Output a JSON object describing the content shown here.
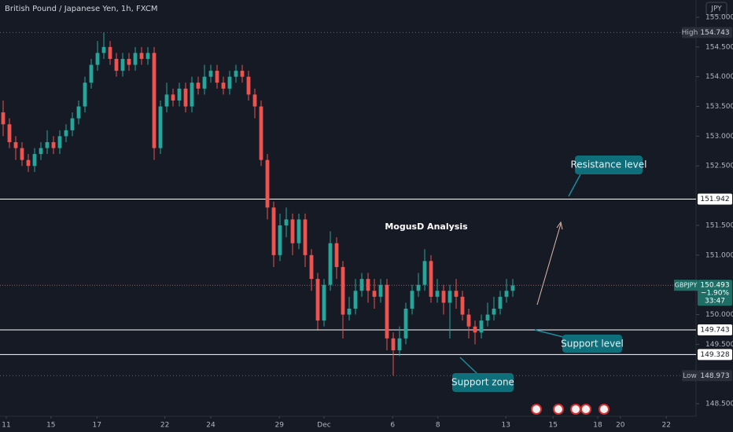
{
  "chart_data": {
    "type": "candlestick",
    "title": "British Pound / Japanese Yen, 1h, FXCM",
    "currency": "JPY",
    "watermark": "MogusD Analysis",
    "up_color": "#26a69a",
    "down_color": "#ef5350",
    "open": [
      153.4,
      153.2,
      152.9,
      152.8,
      152.6,
      152.5,
      152.7,
      152.8,
      152.9,
      152.8,
      153.0,
      153.1,
      153.3,
      153.5,
      153.9,
      154.2,
      154.4,
      154.5,
      154.3,
      154.1,
      154.3,
      154.2,
      154.4,
      154.3,
      154.4,
      152.8,
      153.5,
      153.7,
      153.6,
      153.8,
      153.5,
      153.9,
      153.8,
      154.0,
      154.1,
      153.9,
      153.8,
      154.0,
      154.1,
      154.0,
      153.7,
      153.5,
      152.6,
      151.8,
      151.0,
      151.5,
      151.6,
      151.2,
      151.6,
      151.0,
      150.6,
      149.9,
      150.5,
      151.2,
      150.8,
      150.0,
      150.1,
      150.4,
      150.6,
      150.4,
      150.3,
      150.5,
      149.6,
      149.4,
      149.6,
      150.1,
      150.4,
      150.5,
      150.9,
      150.3,
      150.4,
      150.2,
      150.4,
      150.3,
      150.0,
      149.8,
      149.7,
      149.9,
      150.0,
      150.1,
      150.3,
      150.4
    ],
    "high": [
      153.6,
      153.3,
      153.0,
      152.9,
      152.7,
      152.8,
      152.9,
      153.1,
      153.0,
      153.1,
      153.2,
      153.4,
      153.6,
      154.0,
      154.3,
      154.6,
      154.743,
      154.6,
      154.4,
      154.4,
      154.4,
      154.5,
      154.5,
      154.5,
      154.5,
      153.6,
      153.9,
      153.8,
      153.9,
      153.9,
      154.0,
      154.0,
      154.2,
      154.2,
      154.2,
      154.0,
      154.1,
      154.2,
      154.2,
      154.1,
      153.8,
      153.6,
      152.7,
      151.9,
      151.7,
      151.8,
      151.7,
      151.7,
      151.7,
      151.1,
      150.7,
      150.6,
      151.4,
      151.3,
      150.9,
      150.3,
      150.6,
      150.7,
      150.7,
      150.6,
      150.6,
      150.6,
      149.7,
      149.8,
      150.2,
      150.5,
      150.7,
      151.1,
      151.0,
      150.6,
      150.5,
      150.5,
      150.6,
      150.4,
      150.1,
      149.9,
      150.0,
      150.2,
      150.3,
      150.4,
      150.6,
      150.6
    ],
    "low": [
      153.0,
      152.8,
      152.6,
      152.5,
      152.4,
      152.4,
      152.6,
      152.7,
      152.7,
      152.7,
      152.9,
      153.0,
      153.2,
      153.4,
      153.8,
      154.1,
      154.3,
      154.2,
      154.0,
      154.0,
      154.1,
      154.1,
      154.2,
      154.2,
      152.6,
      152.7,
      153.4,
      153.5,
      153.5,
      153.4,
      153.4,
      153.7,
      153.7,
      153.9,
      153.8,
      153.7,
      153.7,
      153.9,
      153.9,
      153.6,
      153.3,
      152.5,
      151.6,
      150.8,
      150.9,
      151.3,
      151.0,
      151.1,
      150.8,
      150.4,
      149.75,
      149.8,
      150.4,
      150.6,
      149.6,
      149.9,
      150.0,
      150.3,
      150.2,
      150.1,
      150.2,
      149.4,
      148.973,
      149.3,
      149.5,
      150.0,
      150.3,
      150.4,
      150.2,
      150.2,
      150.0,
      149.6,
      150.1,
      149.9,
      149.6,
      149.5,
      149.6,
      149.8,
      149.9,
      150.0,
      150.2,
      150.3
    ],
    "close": [
      153.2,
      152.9,
      152.8,
      152.6,
      152.5,
      152.7,
      152.8,
      152.9,
      152.8,
      153.0,
      153.1,
      153.3,
      153.5,
      153.9,
      154.2,
      154.4,
      154.5,
      154.3,
      154.1,
      154.3,
      154.2,
      154.4,
      154.3,
      154.4,
      152.8,
      153.5,
      153.7,
      153.6,
      153.8,
      153.5,
      153.9,
      153.8,
      154.0,
      154.1,
      153.9,
      153.8,
      154.0,
      154.1,
      154.0,
      153.7,
      153.5,
      152.6,
      151.8,
      151.0,
      151.5,
      151.6,
      151.2,
      151.6,
      151.0,
      150.6,
      149.9,
      150.5,
      151.2,
      150.8,
      150.0,
      150.1,
      150.4,
      150.6,
      150.4,
      150.3,
      150.5,
      149.6,
      149.4,
      149.6,
      150.1,
      150.4,
      150.5,
      150.9,
      150.3,
      150.4,
      150.2,
      150.4,
      150.3,
      150.0,
      149.8,
      149.7,
      149.9,
      150.0,
      150.1,
      150.3,
      150.4,
      150.49
    ],
    "xlim": [
      0,
      110.625
    ],
    "xticks": [
      {
        "value": 1,
        "label": "11"
      },
      {
        "value": 8.1,
        "label": "15"
      },
      {
        "value": 15.4,
        "label": "17"
      },
      {
        "value": 26.2,
        "label": "22"
      },
      {
        "value": 33.5,
        "label": "24"
      },
      {
        "value": 44.4,
        "label": "29"
      },
      {
        "value": 51.5,
        "label": "Dec"
      },
      {
        "value": 62.4,
        "label": "6"
      },
      {
        "value": 69.6,
        "label": "8"
      },
      {
        "value": 80.4,
        "label": "13"
      },
      {
        "value": 87.9,
        "label": "15"
      },
      {
        "value": 95,
        "label": "18"
      },
      {
        "value": 98.6,
        "label": "20"
      },
      {
        "value": 105.9,
        "label": "22"
      }
    ],
    "ylim": [
      148.29,
      155.29
    ],
    "yticks": [
      {
        "value": 155,
        "label": "155.000"
      },
      {
        "value": 154.5,
        "label": "154.500"
      },
      {
        "value": 154,
        "label": "154.000"
      },
      {
        "value": 153.5,
        "label": "153.500"
      },
      {
        "value": 153,
        "label": "153.000"
      },
      {
        "value": 152.5,
        "label": "152.500"
      },
      {
        "value": 151.5,
        "label": "151.500"
      },
      {
        "value": 151,
        "label": "151.000"
      },
      {
        "value": 150,
        "label": "150.000"
      },
      {
        "value": 149.5,
        "label": "149.500"
      },
      {
        "value": 148.5,
        "label": "148.500"
      }
    ],
    "levels": [
      {
        "name": "Resistance level",
        "value": 151.942
      },
      {
        "name": "Support level",
        "value": 149.743
      },
      {
        "name": "Support zone",
        "value": 149.328
      }
    ],
    "high_level": {
      "label": "High",
      "value": 154.743
    },
    "low_level": {
      "label": "Low",
      "value": 148.973
    },
    "last": {
      "symbol": "GBPJPY",
      "value": 150.493,
      "change": "−1.90%",
      "countdown": "33:47"
    }
  }
}
